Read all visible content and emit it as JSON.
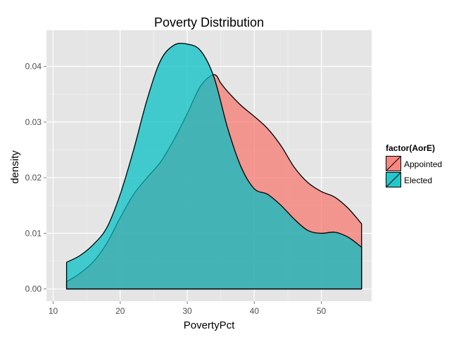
{
  "chart_data": {
    "type": "area",
    "title": "Poverty Distribution",
    "xlabel": "PovertyPct",
    "ylabel": "density",
    "xlim": [
      9,
      57.5
    ],
    "ylim": [
      -0.0022,
      0.0465
    ],
    "x_ticks": [
      10,
      20,
      30,
      40,
      50
    ],
    "y_ticks": [
      0.0,
      0.01,
      0.02,
      0.03,
      0.04
    ],
    "y_tick_labels": [
      "0.00",
      "0.01",
      "0.02",
      "0.03",
      "0.04"
    ],
    "grid": true,
    "legend": {
      "title": "factor(AorE)",
      "placement": "right"
    },
    "series": [
      {
        "name": "Appointed",
        "color": "#F8766D",
        "x": [
          12,
          14,
          16,
          18,
          20,
          22,
          24,
          26,
          28,
          30,
          32,
          34,
          35,
          36,
          38,
          40,
          42,
          44,
          46,
          48,
          50,
          52,
          54,
          56
        ],
        "y": [
          0.0013,
          0.0028,
          0.0049,
          0.0082,
          0.0128,
          0.017,
          0.02,
          0.0228,
          0.0268,
          0.0315,
          0.0365,
          0.0385,
          0.037,
          0.0355,
          0.033,
          0.031,
          0.0288,
          0.0257,
          0.0218,
          0.0191,
          0.0175,
          0.0165,
          0.0145,
          0.0117
        ]
      },
      {
        "name": "Elected",
        "color": "#00BFC4",
        "x": [
          12,
          14,
          16,
          18,
          20,
          22,
          24,
          26,
          28,
          30,
          32,
          34,
          36,
          38,
          40,
          42,
          44,
          46,
          48,
          50,
          52,
          54,
          56
        ],
        "y": [
          0.0048,
          0.006,
          0.008,
          0.011,
          0.017,
          0.025,
          0.034,
          0.041,
          0.0438,
          0.044,
          0.0428,
          0.038,
          0.029,
          0.022,
          0.018,
          0.017,
          0.015,
          0.0125,
          0.0105,
          0.01,
          0.0102,
          0.0093,
          0.0075
        ]
      }
    ]
  }
}
